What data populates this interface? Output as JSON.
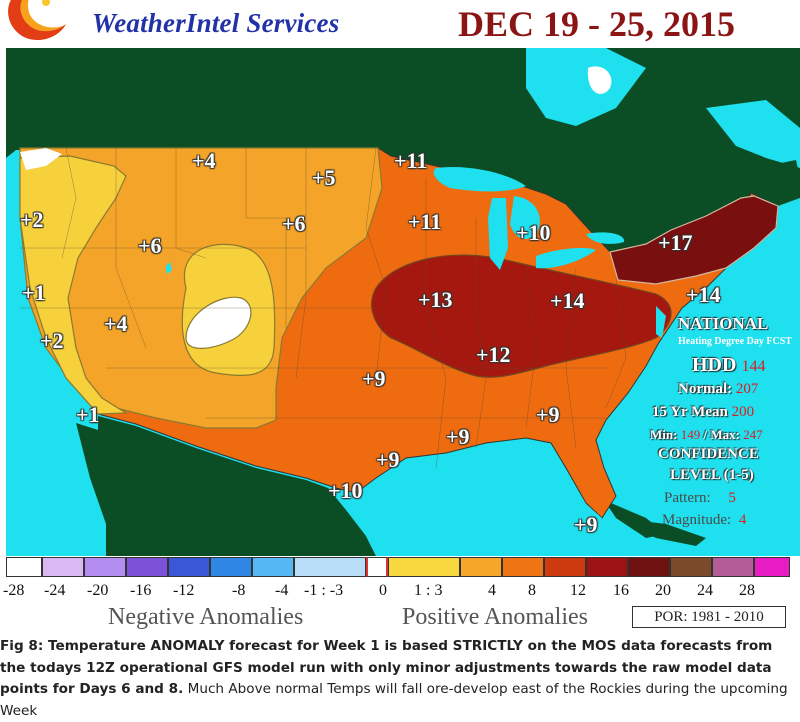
{
  "header": {
    "brand": "WeatherIntel Services",
    "date_range": "DEC 19 - 25, 2015"
  },
  "map": {
    "anomaly_labels": [
      {
        "text": "+4"
      },
      {
        "text": "+5"
      },
      {
        "text": "+11"
      },
      {
        "text": "+2"
      },
      {
        "text": "+6"
      },
      {
        "text": "+6"
      },
      {
        "text": "+11"
      },
      {
        "text": "+10"
      },
      {
        "text": "+17"
      },
      {
        "text": "+1"
      },
      {
        "text": "+13"
      },
      {
        "text": "+14"
      },
      {
        "text": "+14"
      },
      {
        "text": "+4"
      },
      {
        "text": "+2"
      },
      {
        "text": "+12"
      },
      {
        "text": "+9"
      },
      {
        "text": "+1"
      },
      {
        "text": "+9"
      },
      {
        "text": "+9"
      },
      {
        "text": "+9"
      },
      {
        "text": "+10"
      },
      {
        "text": "+9"
      }
    ],
    "colors": {
      "ocean": "#1fe0ee",
      "canada_land": "#0b4d24",
      "mexico_land": "#0b4d24",
      "band_1_3": "#f6d13c",
      "band_4": "#f4a428",
      "band_8": "#ee6b10",
      "band_12": "#a51810",
      "band_16": "#7a0f0f",
      "zero": "#ffffff"
    }
  },
  "info_panel": {
    "national": "NATIONAL",
    "subtitle": "Heating Degree Day FCST",
    "hdd_label": "HDD",
    "hdd_value": "144",
    "normal_label": "Normal:",
    "normal_value": "207",
    "mean_label": "15 Yr Mean",
    "mean_value": "200",
    "min_label": "Min:",
    "min_value": "149",
    "max_label": "/ Max:",
    "max_value": "247",
    "confidence_label": "CONFIDENCE",
    "level_label": "LEVEL (1-5)",
    "pattern_label": "Pattern:",
    "pattern_value": "5",
    "magnitude_label": "Magnitude:",
    "magnitude_value": "4"
  },
  "legend": {
    "swatches": [
      {
        "color": "#ffffff"
      },
      {
        "color": "#d9b8f4"
      },
      {
        "color": "#b38ef0"
      },
      {
        "color": "#7b52d8"
      },
      {
        "color": "#3a57d8"
      },
      {
        "color": "#2f86e4"
      },
      {
        "color": "#55b8f2"
      },
      {
        "color": "#b8def7"
      },
      {
        "color": "#ffffff"
      },
      {
        "color": "#f7d93e"
      },
      {
        "color": "#f5a72a"
      },
      {
        "color": "#ef7514"
      },
      {
        "color": "#cd3a10"
      },
      {
        "color": "#9d1212"
      },
      {
        "color": "#6e1111"
      },
      {
        "color": "#7a4a2a"
      },
      {
        "color": "#b35c98"
      },
      {
        "color": "#e81cc3"
      }
    ],
    "ticks": [
      "-28",
      "-24",
      "-20",
      "-16",
      "-12",
      "-8",
      "-4",
      "-1 : -3",
      "0",
      "1 : 3",
      "4",
      "8",
      "12",
      "16",
      "20",
      "24",
      "28"
    ],
    "negative_label": "Negative Anomalies",
    "positive_label": "Positive Anomalies",
    "por": "POR: 1981 - 2010"
  },
  "caption": {
    "bold_text": "Fig 8: Temperature ANOMALY forecast for Week 1 is based STRICTLY on the MOS data forecasts from the todays 12Z operational GFS model run with only minor adjustments towards the raw model data points for Days 6 and 8.",
    "normal_text": " Much Above normal Temps will fall ore-develop east of the Rockies during the upcoming Week"
  }
}
